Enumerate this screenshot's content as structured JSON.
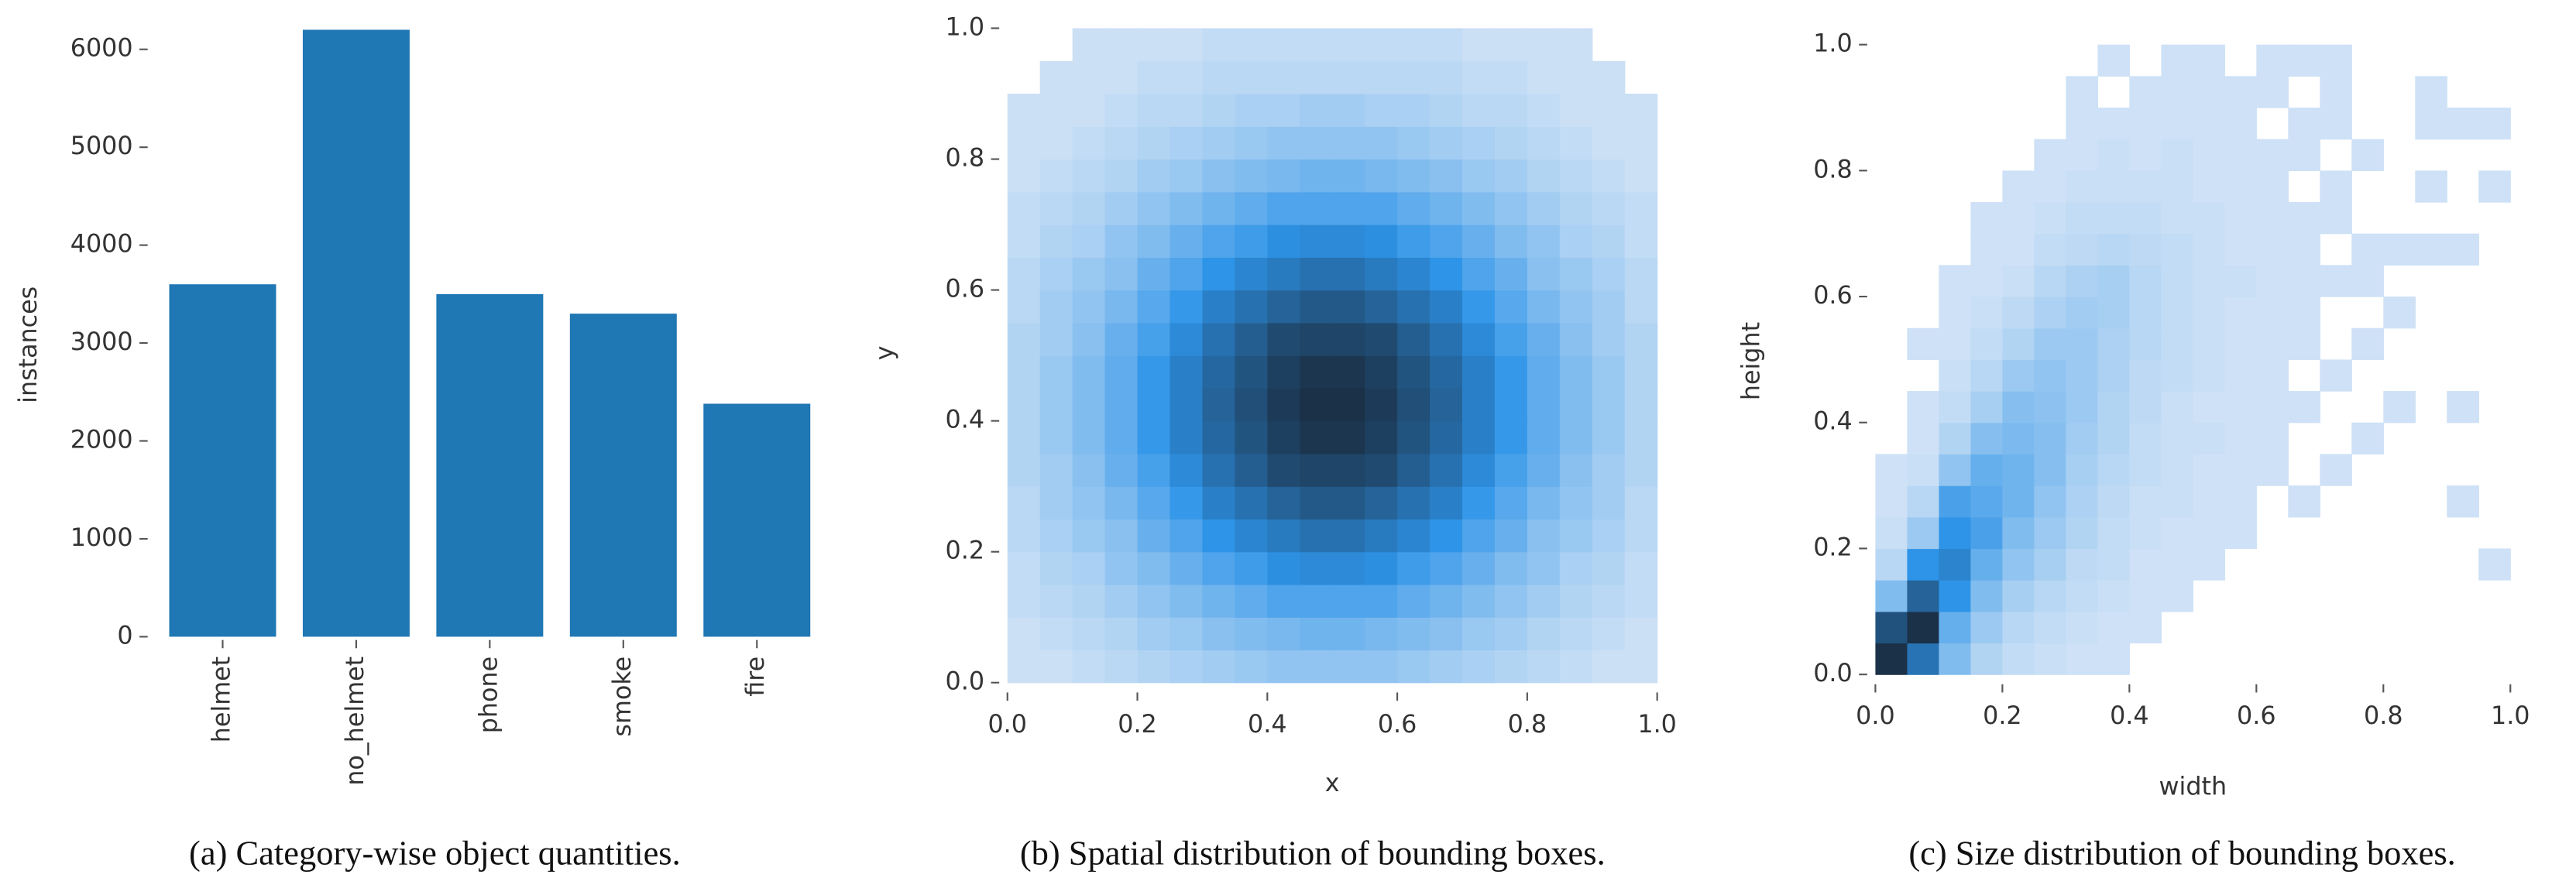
{
  "chart_data": [
    {
      "type": "bar",
      "caption": "(a) Category-wise object quantities.",
      "ylabel": "instances",
      "categories": [
        "helmet",
        "no_helmet",
        "phone",
        "smoke",
        "fire"
      ],
      "values": [
        3600,
        6200,
        3500,
        3300,
        2380
      ],
      "color": "#1f77b4",
      "ylim": [
        0,
        6400
      ],
      "yticks": [
        0,
        1000,
        2000,
        3000,
        4000,
        5000,
        6000
      ]
    },
    {
      "type": "hist2d",
      "caption": "(b) Spatial distribution of bounding boxes.",
      "xlabel": "x",
      "ylabel": "y",
      "cmap": [
        "#d3e4f6",
        "#2e94e8",
        "#1b3148"
      ],
      "xlim": [
        0,
        1
      ],
      "ylim": [
        0,
        1
      ],
      "xticks": [
        {
          "value": 0,
          "label": "0.0"
        },
        0.2,
        0.4,
        0.6,
        0.8,
        {
          "value": 1,
          "label": "1.0"
        }
      ],
      "yticks": [
        {
          "value": 0,
          "label": "0.0"
        },
        0.2,
        0.4,
        0.6,
        0.8,
        {
          "value": 1,
          "label": "1.0"
        }
      ],
      "xbins": [
        0,
        0.05,
        0.1,
        0.15,
        0.2,
        0.25,
        0.3,
        0.35,
        0.4,
        0.45,
        0.5,
        0.55,
        0.6,
        0.65,
        0.7,
        0.75,
        0.8,
        0.85,
        0.9,
        0.95,
        1
      ],
      "ybins": [
        0,
        0.05,
        0.1,
        0.15,
        0.2,
        0.25,
        0.3,
        0.35,
        0.4,
        0.45,
        0.5,
        0.55,
        0.6,
        0.65,
        0.7,
        0.75,
        0.8,
        0.85,
        0.9,
        0.95,
        1
      ],
      "counts": [
        [
          1,
          1,
          2,
          3,
          4,
          5,
          6,
          7,
          8,
          8,
          8,
          8,
          7,
          6,
          5,
          4,
          3,
          2,
          1,
          1
        ],
        [
          1,
          2,
          3,
          4,
          6,
          7,
          9,
          10,
          11,
          12,
          12,
          11,
          10,
          9,
          7,
          6,
          4,
          3,
          2,
          1
        ],
        [
          2,
          3,
          4,
          6,
          8,
          10,
          12,
          14,
          16,
          16,
          16,
          16,
          14,
          12,
          10,
          8,
          6,
          4,
          3,
          2
        ],
        [
          2,
          4,
          5,
          8,
          10,
          13,
          16,
          18,
          21,
          22,
          22,
          21,
          18,
          16,
          13,
          10,
          8,
          5,
          4,
          2
        ],
        [
          3,
          5,
          7,
          9,
          13,
          16,
          20,
          23,
          25,
          27,
          27,
          25,
          23,
          20,
          16,
          13,
          9,
          7,
          5,
          3
        ],
        [
          3,
          6,
          8,
          11,
          15,
          19,
          24,
          27,
          30,
          32,
          32,
          30,
          27,
          24,
          19,
          15,
          11,
          8,
          6,
          3
        ],
        [
          4,
          6,
          9,
          13,
          17,
          22,
          27,
          31,
          35,
          36,
          36,
          35,
          31,
          27,
          22,
          17,
          13,
          9,
          6,
          4
        ],
        [
          4,
          7,
          10,
          14,
          19,
          24,
          29,
          33,
          37,
          39,
          39,
          37,
          33,
          29,
          24,
          19,
          14,
          10,
          7,
          4
        ],
        [
          4,
          7,
          10,
          14,
          19,
          24,
          30,
          34,
          38,
          40,
          40,
          38,
          34,
          30,
          24,
          19,
          14,
          10,
          7,
          4
        ],
        [
          4,
          7,
          10,
          14,
          19,
          24,
          29,
          33,
          37,
          39,
          39,
          37,
          33,
          29,
          24,
          19,
          14,
          10,
          7,
          4
        ],
        [
          4,
          6,
          9,
          13,
          17,
          22,
          27,
          31,
          35,
          36,
          36,
          35,
          31,
          27,
          22,
          17,
          13,
          9,
          6,
          4
        ],
        [
          3,
          6,
          8,
          11,
          15,
          19,
          24,
          27,
          30,
          32,
          32,
          30,
          27,
          24,
          19,
          15,
          11,
          8,
          6,
          3
        ],
        [
          3,
          5,
          7,
          9,
          13,
          16,
          20,
          23,
          25,
          27,
          27,
          25,
          23,
          20,
          16,
          13,
          9,
          7,
          5,
          3
        ],
        [
          2,
          4,
          5,
          8,
          10,
          13,
          16,
          18,
          21,
          22,
          22,
          21,
          18,
          16,
          13,
          10,
          8,
          5,
          4,
          2
        ],
        [
          2,
          3,
          4,
          6,
          8,
          10,
          12,
          14,
          16,
          16,
          16,
          16,
          14,
          12,
          10,
          8,
          6,
          4,
          3,
          2
        ],
        [
          1,
          2,
          3,
          4,
          6,
          7,
          9,
          10,
          11,
          12,
          12,
          11,
          10,
          9,
          7,
          6,
          4,
          3,
          2,
          1
        ],
        [
          1,
          1,
          2,
          3,
          4,
          5,
          6,
          7,
          8,
          8,
          8,
          8,
          7,
          6,
          5,
          4,
          3,
          2,
          1,
          1
        ],
        [
          1,
          1,
          1,
          2,
          3,
          3,
          4,
          5,
          5,
          6,
          6,
          5,
          5,
          4,
          3,
          3,
          2,
          1,
          1,
          1
        ],
        [
          0,
          1,
          1,
          1,
          2,
          2,
          3,
          3,
          3,
          3,
          3,
          3,
          3,
          3,
          2,
          2,
          1,
          1,
          1,
          0
        ],
        [
          0,
          0,
          1,
          1,
          1,
          1,
          2,
          2,
          2,
          2,
          2,
          2,
          2,
          2,
          1,
          1,
          1,
          1,
          0,
          0
        ]
      ]
    },
    {
      "type": "hist2d",
      "caption": "(c) Size distribution of bounding boxes.",
      "xlabel": "width",
      "ylabel": "height",
      "cmap": [
        "#d3e4f6",
        "#2e94e8",
        "#1b3148"
      ],
      "xlim": [
        0,
        1
      ],
      "ylim": [
        0,
        1
      ],
      "xticks": [
        {
          "value": 0,
          "label": "0.0"
        },
        0.2,
        0.4,
        0.6,
        0.8,
        {
          "value": 1,
          "label": "1.0"
        }
      ],
      "yticks": [
        {
          "value": 0,
          "label": "0.0"
        },
        0.2,
        0.4,
        0.6,
        0.8,
        {
          "value": 1,
          "label": "1.0"
        }
      ],
      "xbins": [
        0,
        0.05,
        0.1,
        0.15,
        0.2,
        0.25,
        0.3,
        0.35,
        0.4,
        0.45,
        0.5,
        0.55,
        0.6,
        0.65,
        0.7,
        0.75,
        0.8,
        0.85,
        0.9,
        0.95,
        1
      ],
      "ybins": [
        0,
        0.05,
        0.1,
        0.15,
        0.2,
        0.25,
        0.3,
        0.35,
        0.4,
        0.45,
        0.5,
        0.55,
        0.6,
        0.65,
        0.7,
        0.75,
        0.8,
        0.85,
        0.9,
        0.95,
        1
      ],
      "counts": [
        [
          60,
          40,
          15,
          6,
          3,
          2,
          1,
          1,
          0,
          0,
          0,
          0,
          0,
          0,
          0,
          0,
          0,
          0,
          0,
          0
        ],
        [
          50,
          60,
          20,
          10,
          5,
          3,
          2,
          1,
          1,
          0,
          0,
          0,
          0,
          0,
          0,
          0,
          0,
          0,
          0,
          0
        ],
        [
          15,
          45,
          30,
          15,
          8,
          5,
          3,
          2,
          1,
          1,
          0,
          0,
          0,
          0,
          0,
          0,
          0,
          0,
          0,
          0
        ],
        [
          5,
          30,
          35,
          20,
          12,
          8,
          4,
          3,
          1,
          1,
          1,
          0,
          0,
          0,
          0,
          0,
          0,
          0,
          0,
          1
        ],
        [
          2,
          10,
          30,
          25,
          15,
          10,
          6,
          3,
          2,
          1,
          1,
          1,
          0,
          0,
          0,
          0,
          0,
          0,
          0,
          0
        ],
        [
          1,
          5,
          25,
          22,
          18,
          12,
          7,
          4,
          2,
          2,
          1,
          1,
          0,
          1,
          0,
          0,
          0,
          0,
          1,
          0
        ],
        [
          1,
          2,
          12,
          20,
          18,
          14,
          8,
          5,
          3,
          2,
          1,
          1,
          1,
          0,
          1,
          0,
          0,
          0,
          0,
          0
        ],
        [
          0,
          1,
          6,
          14,
          16,
          14,
          9,
          6,
          3,
          2,
          2,
          1,
          1,
          0,
          0,
          1,
          0,
          0,
          0,
          0
        ],
        [
          0,
          1,
          3,
          8,
          14,
          13,
          10,
          6,
          4,
          2,
          1,
          1,
          1,
          1,
          0,
          0,
          1,
          0,
          1,
          0
        ],
        [
          0,
          0,
          2,
          5,
          10,
          12,
          10,
          7,
          4,
          3,
          2,
          1,
          1,
          0,
          1,
          0,
          0,
          0,
          0,
          0
        ],
        [
          0,
          1,
          1,
          3,
          6,
          10,
          10,
          7,
          5,
          3,
          2,
          1,
          1,
          1,
          0,
          1,
          0,
          0,
          0,
          0
        ],
        [
          0,
          0,
          1,
          2,
          4,
          7,
          9,
          8,
          5,
          3,
          2,
          1,
          1,
          1,
          0,
          0,
          1,
          0,
          0,
          0
        ],
        [
          0,
          0,
          1,
          1,
          2,
          5,
          7,
          8,
          5,
          3,
          2,
          2,
          1,
          1,
          1,
          1,
          0,
          0,
          0,
          0
        ],
        [
          0,
          0,
          0,
          1,
          1,
          3,
          4,
          5,
          4,
          3,
          2,
          1,
          1,
          1,
          0,
          1,
          1,
          1,
          1,
          0
        ],
        [
          0,
          0,
          0,
          1,
          1,
          2,
          3,
          3,
          3,
          2,
          2,
          1,
          1,
          1,
          1,
          0,
          0,
          0,
          0,
          0
        ],
        [
          0,
          0,
          0,
          0,
          1,
          1,
          2,
          2,
          2,
          2,
          1,
          1,
          1,
          0,
          1,
          0,
          0,
          1,
          0,
          1
        ],
        [
          0,
          0,
          0,
          0,
          0,
          1,
          1,
          2,
          1,
          2,
          1,
          1,
          1,
          1,
          0,
          1,
          0,
          0,
          0,
          0
        ],
        [
          0,
          0,
          0,
          0,
          0,
          0,
          1,
          1,
          1,
          1,
          1,
          1,
          0,
          1,
          1,
          0,
          0,
          1,
          1,
          1
        ],
        [
          0,
          0,
          0,
          0,
          0,
          0,
          1,
          0,
          1,
          1,
          1,
          1,
          1,
          0,
          1,
          0,
          0,
          1,
          0,
          0
        ],
        [
          0,
          0,
          0,
          0,
          0,
          0,
          0,
          1,
          0,
          1,
          1,
          0,
          1,
          1,
          1,
          0,
          0,
          0,
          0,
          0
        ]
      ]
    }
  ]
}
